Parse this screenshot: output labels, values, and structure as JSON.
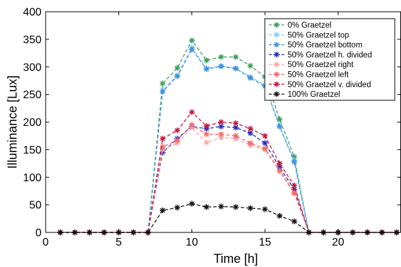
{
  "chart_data": {
    "type": "line",
    "title": "",
    "xlabel": "Time [h]",
    "ylabel": "Illuminance [Lux]",
    "xlim": [
      0,
      24.3
    ],
    "ylim": [
      0,
      400
    ],
    "xticks": [
      0,
      5,
      10,
      15,
      20
    ],
    "yticks": [
      0,
      50,
      100,
      150,
      200,
      250,
      300,
      350,
      400
    ],
    "grid": false,
    "legend_position": "top-right",
    "marker": "asterisk",
    "line_style": "dashed",
    "x": [
      1,
      2,
      3,
      4,
      5,
      6,
      7,
      8,
      9,
      10,
      11,
      12,
      13,
      14,
      15,
      16,
      17,
      18,
      19,
      20,
      21,
      22,
      23,
      24
    ],
    "series": [
      {
        "name": "0% Graetzel",
        "color": "#3a9e5c",
        "values": [
          0,
          0,
          0,
          0,
          0,
          0,
          0,
          270,
          298,
          348,
          312,
          318,
          318,
          302,
          282,
          205,
          137,
          0,
          0,
          0,
          0,
          0,
          0,
          0
        ]
      },
      {
        "name": "50% Graetzel top",
        "color": "#87cefa",
        "values": [
          0,
          0,
          0,
          0,
          0,
          0,
          0,
          258,
          285,
          335,
          298,
          302,
          298,
          282,
          267,
          193,
          130,
          0,
          0,
          0,
          0,
          0,
          0,
          0
        ]
      },
      {
        "name": "50% Graetzel bottom",
        "color": "#3f8fdc",
        "values": [
          0,
          0,
          0,
          0,
          0,
          0,
          0,
          255,
          283,
          332,
          296,
          301,
          297,
          280,
          265,
          192,
          128,
          0,
          0,
          0,
          0,
          0,
          0,
          0
        ]
      },
      {
        "name": "50% Graetzel h. divided",
        "color": "#1f2bbf",
        "values": [
          0,
          0,
          0,
          0,
          0,
          0,
          0,
          145,
          170,
          192,
          188,
          192,
          190,
          180,
          162,
          118,
          78,
          0,
          0,
          0,
          0,
          0,
          0,
          0
        ]
      },
      {
        "name": "50% Graetzel right",
        "color": "#f7a8a8",
        "values": [
          0,
          0,
          0,
          0,
          0,
          0,
          0,
          150,
          162,
          190,
          163,
          172,
          170,
          158,
          150,
          110,
          70,
          0,
          0,
          0,
          0,
          0,
          0,
          0
        ]
      },
      {
        "name": "50% Graetzel left",
        "color": "#f26a6a",
        "values": [
          0,
          0,
          0,
          0,
          0,
          0,
          0,
          155,
          167,
          195,
          178,
          178,
          175,
          162,
          152,
          113,
          72,
          0,
          0,
          0,
          0,
          0,
          0,
          0
        ]
      },
      {
        "name": "50% Graetzel v. divided",
        "color": "#c2183d",
        "values": [
          0,
          0,
          0,
          0,
          0,
          0,
          0,
          170,
          185,
          218,
          193,
          200,
          198,
          188,
          175,
          125,
          85,
          0,
          0,
          0,
          0,
          0,
          0,
          0
        ]
      },
      {
        "name": "100% Graetzel",
        "color": "#111111",
        "values": [
          0,
          0,
          0,
          0,
          0,
          0,
          0,
          40,
          45,
          52,
          46,
          47,
          46,
          44,
          42,
          30,
          20,
          0,
          0,
          0,
          0,
          0,
          0,
          0
        ]
      }
    ]
  }
}
